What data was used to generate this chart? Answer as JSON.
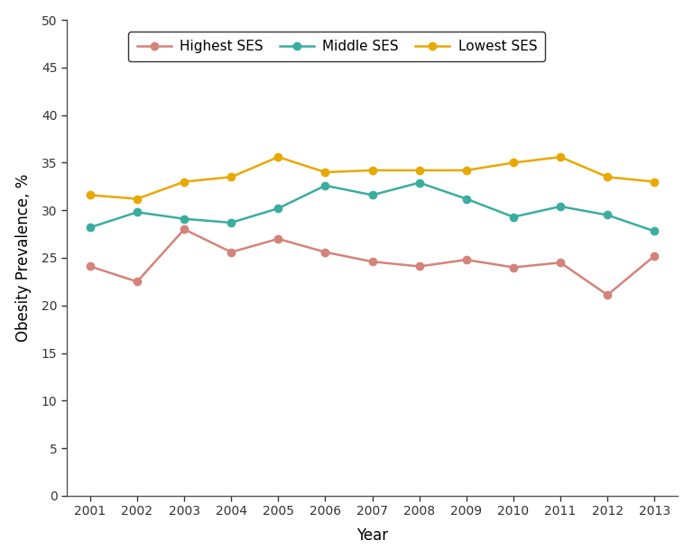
{
  "years": [
    2001,
    2002,
    2003,
    2004,
    2005,
    2006,
    2007,
    2008,
    2009,
    2010,
    2011,
    2012,
    2013
  ],
  "highest_ses": [
    24.1,
    22.5,
    28.0,
    25.6,
    27.0,
    25.6,
    24.6,
    24.1,
    24.8,
    24.0,
    24.5,
    21.1,
    25.2
  ],
  "middle_ses": [
    28.2,
    29.8,
    29.1,
    28.7,
    30.2,
    32.6,
    31.6,
    32.9,
    31.2,
    29.3,
    30.4,
    29.5,
    27.8
  ],
  "lowest_ses": [
    31.6,
    31.2,
    33.0,
    33.5,
    35.6,
    34.0,
    34.2,
    34.2,
    34.2,
    35.0,
    35.6,
    33.5,
    33.0
  ],
  "highest_color": "#d4837a",
  "middle_color": "#3aada0",
  "lowest_color": "#e8a800",
  "xlabel": "Year",
  "ylabel": "Obesity Prevalence, %",
  "ylim": [
    0,
    50
  ],
  "yticks": [
    0,
    5,
    10,
    15,
    20,
    25,
    30,
    35,
    40,
    45,
    50
  ],
  "legend_labels": [
    "Highest SES",
    "Middle SES",
    "Lowest SES"
  ],
  "background_color": "#ffffff",
  "marker": "o",
  "linewidth": 1.8,
  "markersize": 6
}
